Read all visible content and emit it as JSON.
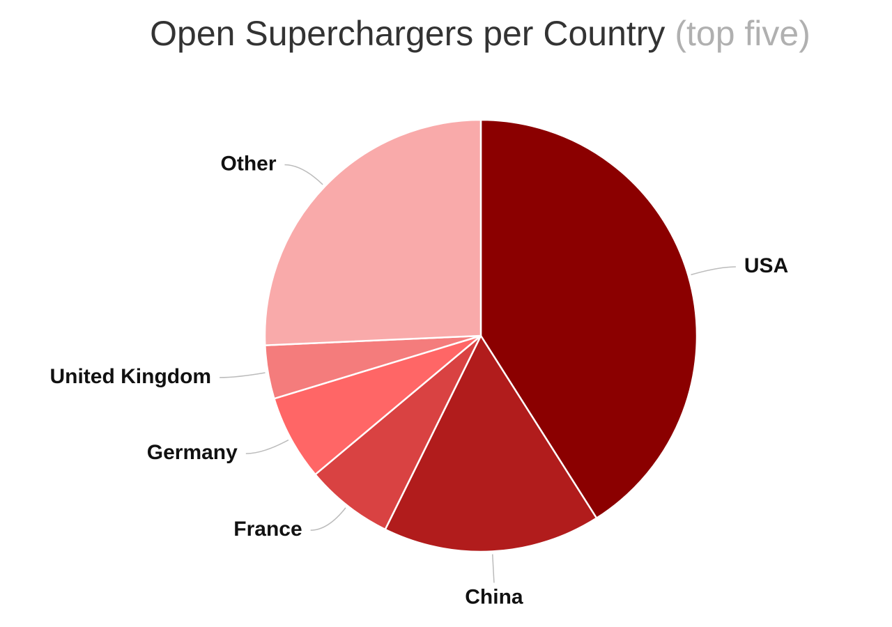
{
  "chart_data": {
    "type": "pie",
    "title": "Open Superchargers per Country",
    "subtitle": "(top five)",
    "categories": [
      "USA",
      "China",
      "France",
      "Germany",
      "United Kingdom",
      "Other"
    ],
    "values": [
      41,
      16.3,
      6.6,
      6.4,
      4,
      25.7
    ],
    "colors": [
      "#8b0000",
      "#b11c1c",
      "#d94242",
      "#ff6666",
      "#f47c7c",
      "#f9aaaa"
    ]
  }
}
